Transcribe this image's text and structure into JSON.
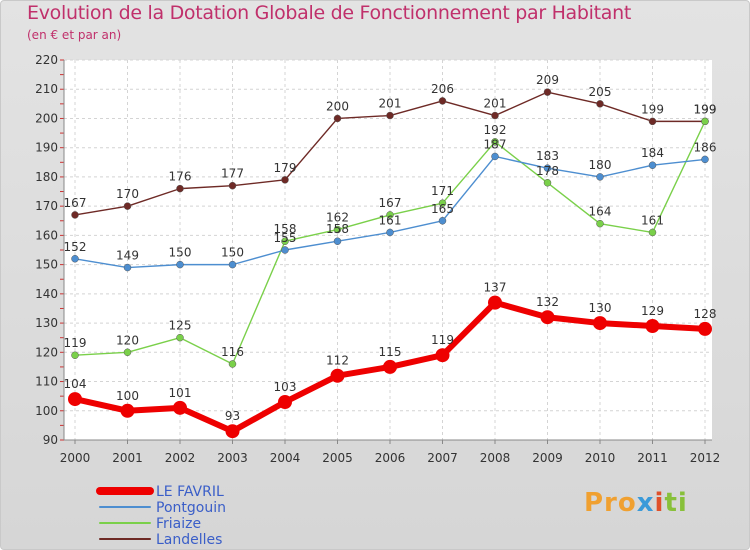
{
  "title": "Evolution de la Dotation Globale de Fonctionnement par Habitant",
  "subtitle": "(en € et par an)",
  "logo": {
    "part1": "Pro",
    "part2": "x",
    "part3": "i",
    "part4": "ti"
  },
  "chart_data": {
    "type": "line",
    "title": "Evolution de la Dotation Globale de Fonctionnement par Habitant",
    "ylabel": "(en € et par an)",
    "xlabel": "",
    "ylim": [
      90,
      220
    ],
    "yticks": [
      90,
      100,
      110,
      120,
      130,
      140,
      150,
      160,
      170,
      180,
      190,
      200,
      210,
      220
    ],
    "categories": [
      "2000",
      "2001",
      "2002",
      "2003",
      "2004",
      "2005",
      "2006",
      "2007",
      "2008",
      "2009",
      "2010",
      "2011",
      "2012"
    ],
    "grid": true,
    "legend": "bottom-left",
    "series": [
      {
        "name": "Landelles",
        "color": "#6e2a26",
        "values": [
          167,
          170,
          176,
          177,
          179,
          200,
          201,
          206,
          201,
          209,
          205,
          199,
          199
        ]
      },
      {
        "name": "Friaize",
        "color": "#7ad04a",
        "values": [
          119,
          120,
          125,
          116,
          158,
          162,
          167,
          171,
          192,
          178,
          164,
          161,
          199
        ]
      },
      {
        "name": "Pontgouin",
        "color": "#4d8ed0",
        "values": [
          152,
          149,
          150,
          150,
          155,
          158,
          161,
          165,
          187,
          183,
          180,
          184,
          186
        ]
      },
      {
        "name": "LE FAVRIL",
        "color": "#ee0000",
        "values": [
          104,
          100,
          101,
          93,
          103,
          112,
          115,
          119,
          137,
          132,
          130,
          129,
          128
        ]
      }
    ],
    "legend_order": [
      "LE FAVRIL",
      "Pontgouin",
      "Friaize",
      "Landelles"
    ]
  }
}
